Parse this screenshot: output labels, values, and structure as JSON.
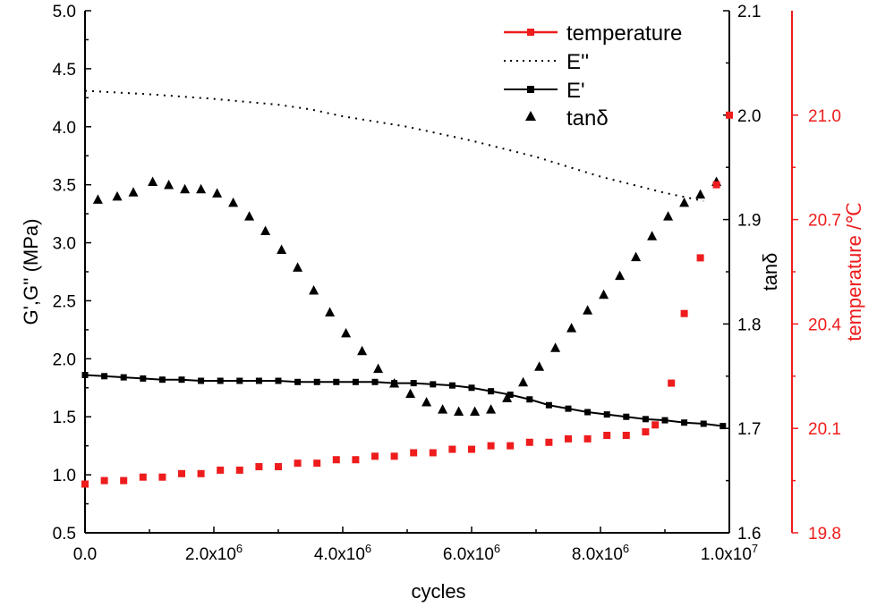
{
  "chart_data": {
    "type": "scatter",
    "xlabel": "cycles",
    "x_range": [
      0,
      10000000
    ],
    "x_ticks": [
      {
        "value": 0,
        "label": "0.0",
        "sup": ""
      },
      {
        "value": 2000000,
        "label": "2.0x10",
        "sup": "6"
      },
      {
        "value": 4000000,
        "label": "4.0x10",
        "sup": "6"
      },
      {
        "value": 6000000,
        "label": "6.0x10",
        "sup": "6"
      },
      {
        "value": 8000000,
        "label": "8.0x10",
        "sup": "6"
      },
      {
        "value": 10000000,
        "label": "1.0x10",
        "sup": "7"
      }
    ],
    "left_axis": {
      "label": "G',G''   (MPa)",
      "range": [
        0.5,
        5.0
      ],
      "ticks": [
        "0.5",
        "1.0",
        "1.5",
        "2.0",
        "2.5",
        "3.0",
        "3.5",
        "4.0",
        "4.5",
        "5.0"
      ],
      "color": "#000000"
    },
    "tan_axis": {
      "label": "tanδ",
      "range": [
        1.6,
        2.1
      ],
      "ticks": [
        "1.6",
        "1.7",
        "1.8",
        "1.9",
        "2.0",
        "2.1"
      ],
      "color": "#000000"
    },
    "temp_axis": {
      "label": "temperature  /℃",
      "range": [
        19.8,
        21.3
      ],
      "ticks": [
        "19.8",
        "20.1",
        "20.4",
        "20.7",
        "21.0"
      ],
      "color": "#ee1c1c"
    },
    "legend": [
      {
        "name": "temperature",
        "style": "red-line-square"
      },
      {
        "name": "E''",
        "style": "dotted"
      },
      {
        "name": "E'",
        "style": "line-square"
      },
      {
        "name": "tanδ",
        "style": "triangle"
      }
    ],
    "series": [
      {
        "name": "E''",
        "axis": "left",
        "style": "dotted",
        "x": [
          0,
          1000000,
          2000000,
          3000000,
          3500000,
          4000000,
          5000000,
          6000000,
          7000000,
          8000000,
          9000000,
          9600000
        ],
        "y": [
          4.31,
          4.28,
          4.24,
          4.19,
          4.15,
          4.09,
          4.0,
          3.88,
          3.74,
          3.57,
          3.43,
          3.36
        ]
      },
      {
        "name": "E'",
        "axis": "left",
        "style": "line-square",
        "x": [
          0,
          300000,
          600000,
          900000,
          1200000,
          1500000,
          1800000,
          2100000,
          2400000,
          2700000,
          3000000,
          3300000,
          3600000,
          3900000,
          4200000,
          4500000,
          4800000,
          5100000,
          5400000,
          5700000,
          6000000,
          6300000,
          6600000,
          6900000,
          7200000,
          7500000,
          7800000,
          8100000,
          8400000,
          8700000,
          9000000,
          9300000,
          9600000,
          9900000
        ],
        "y": [
          1.86,
          1.85,
          1.84,
          1.83,
          1.82,
          1.82,
          1.81,
          1.81,
          1.81,
          1.81,
          1.81,
          1.8,
          1.8,
          1.8,
          1.8,
          1.8,
          1.79,
          1.79,
          1.78,
          1.77,
          1.75,
          1.72,
          1.69,
          1.65,
          1.6,
          1.57,
          1.54,
          1.52,
          1.5,
          1.48,
          1.47,
          1.45,
          1.44,
          1.42
        ]
      },
      {
        "name": "tanδ",
        "axis": "tan",
        "style": "triangle",
        "x": [
          200000,
          500000,
          750000,
          1050000,
          1300000,
          1550000,
          1800000,
          2050000,
          2300000,
          2550000,
          2800000,
          3050000,
          3300000,
          3550000,
          3800000,
          4050000,
          4300000,
          4550000,
          4800000,
          5050000,
          5300000,
          5550000,
          5800000,
          6050000,
          6300000,
          6550000,
          6800000,
          7050000,
          7300000,
          7550000,
          7800000,
          8050000,
          8300000,
          8550000,
          8800000,
          9050000,
          9300000,
          9550000,
          9800000
        ],
        "y": [
          1.919,
          1.922,
          1.926,
          1.936,
          1.933,
          1.929,
          1.929,
          1.925,
          1.916,
          1.903,
          1.889,
          1.871,
          1.854,
          1.832,
          1.811,
          1.791,
          1.774,
          1.757,
          1.743,
          1.733,
          1.725,
          1.718,
          1.716,
          1.716,
          1.718,
          1.729,
          1.744,
          1.759,
          1.777,
          1.796,
          1.813,
          1.828,
          1.846,
          1.864,
          1.884,
          1.903,
          1.916,
          1.924,
          1.936
        ]
      },
      {
        "name": "temperature",
        "axis": "temp",
        "style": "red-square",
        "x": [
          0,
          300000,
          600000,
          900000,
          1200000,
          1500000,
          1800000,
          2100000,
          2400000,
          2700000,
          3000000,
          3300000,
          3600000,
          3900000,
          4200000,
          4500000,
          4800000,
          5100000,
          5400000,
          5700000,
          6000000,
          6300000,
          6600000,
          6900000,
          7200000,
          7500000,
          7800000,
          8100000,
          8400000,
          8700000,
          8850000,
          9100000,
          9300000,
          9550000,
          9800000,
          10000000
        ],
        "y": [
          19.94,
          19.95,
          19.95,
          19.96,
          19.96,
          19.97,
          19.97,
          19.98,
          19.98,
          19.99,
          19.99,
          20.0,
          20.0,
          20.01,
          20.01,
          20.02,
          20.02,
          20.03,
          20.03,
          20.04,
          20.04,
          20.05,
          20.05,
          20.06,
          20.06,
          20.07,
          20.07,
          20.08,
          20.08,
          20.09,
          20.11,
          20.23,
          20.43,
          20.59,
          20.8,
          21.0
        ]
      }
    ]
  }
}
